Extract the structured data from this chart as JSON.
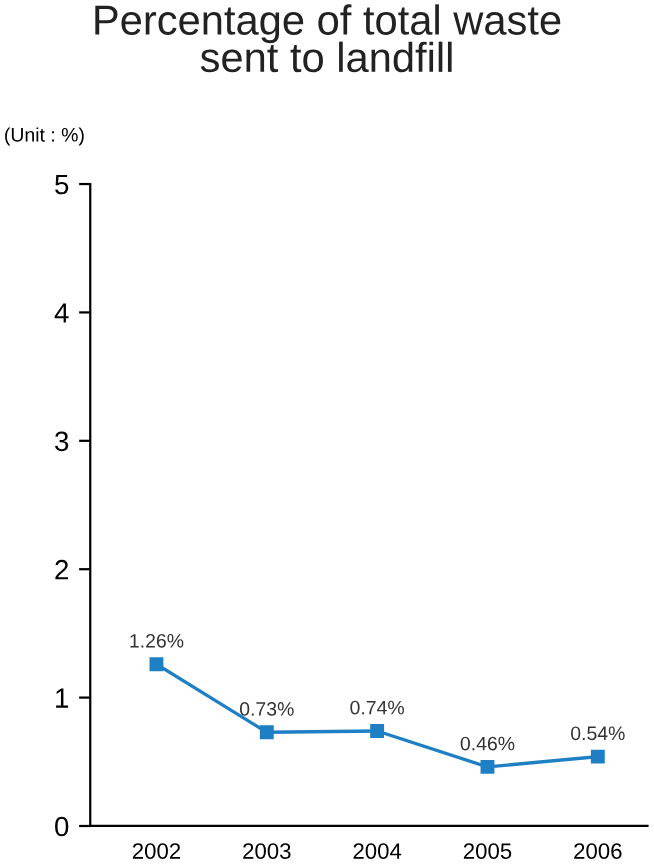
{
  "chart_data": {
    "type": "line",
    "title": "Percentage of total waste\nsent to landfill",
    "ylabel": "(Unit : %)",
    "categories": [
      "2002",
      "2003",
      "2004",
      "2005",
      "2006"
    ],
    "series": [
      {
        "color": "#1f7fc4",
        "values": [
          1.26,
          0.73,
          0.74,
          0.46,
          0.54
        ],
        "value_labels": [
          "1.26%",
          "0.73%",
          "0.74%",
          "0.46%",
          "0.54%"
        ]
      }
    ],
    "ylim": [
      0,
      5
    ],
    "yticks": [
      0,
      1,
      2,
      3,
      4,
      5
    ],
    "grid": false,
    "legend": false,
    "marker": "square",
    "line_style": "solid"
  }
}
